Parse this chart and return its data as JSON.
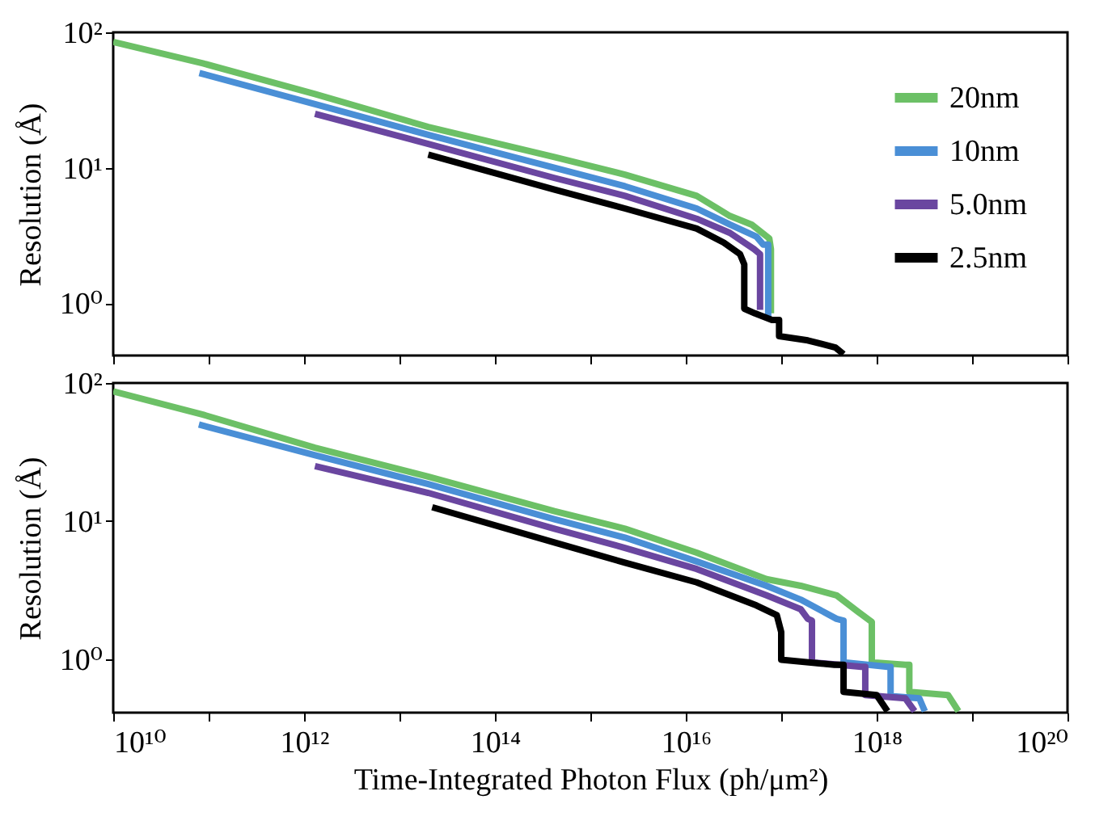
{
  "chart_data": [
    {
      "type": "line",
      "ylabel": "Resolution (Å)",
      "log": "xy",
      "legend": "top right",
      "tick_labels": "y",
      "xlim": [
        10000000000.0,
        1e+20
      ],
      "ylim": [
        0.41,
        100
      ],
      "xticks": [
        {
          "value": 10000000000.0,
          "label": null
        },
        {
          "value": 100000000000.0,
          "label": null
        },
        {
          "value": 1000000000000.0,
          "label": null
        },
        {
          "value": 10000000000000.0,
          "label": null
        },
        {
          "value": 100000000000000.0,
          "label": null
        },
        {
          "value": 1000000000000000.0,
          "label": null
        },
        {
          "value": 1e+16,
          "label": null
        },
        {
          "value": 1e+17,
          "label": null
        },
        {
          "value": 1e+18,
          "label": null
        },
        {
          "value": 1e+19,
          "label": null
        },
        {
          "value": 1e+20,
          "label": null
        }
      ],
      "yticks": [
        {
          "value": 1,
          "label": "10⁰"
        },
        {
          "value": 10,
          "label": "10¹"
        },
        {
          "value": 100,
          "label": "10²"
        }
      ],
      "series": [
        {
          "name": "20nm",
          "color": "#6cc066",
          "x": [
            10000000000.0,
            87000000000.0,
            1300000000000.0,
            20000000000000.0,
            420000000000000.0,
            2300000000000000.0,
            1.3e+16,
            2.9e+16,
            4.9e+16,
            7.5e+16,
            7.8e+16,
            7.8e+16
          ],
          "values": [
            85,
            59,
            35,
            20,
            12,
            8.9,
            6.2,
            4.4,
            3.8,
            3.0,
            2.5,
            0.84
          ]
        },
        {
          "name": "10nm",
          "color": "#4a8fd6",
          "x": [
            80000000000.0,
            1300000000000.0,
            20000000000000.0,
            420000000000000.0,
            2300000000000000.0,
            1.3e+16,
            2.9e+16,
            5.5e+16,
            6.5e+16,
            7.3e+16,
            7.3e+16
          ],
          "values": [
            50,
            29.5,
            17.5,
            10,
            7.3,
            5.0,
            3.8,
            3.1,
            2.7,
            2.7,
            0.79
          ]
        },
        {
          "name": "5.0nm",
          "color": "#6a46a0",
          "x": [
            1300000000000.0,
            20000000000000.0,
            420000000000000.0,
            2300000000000000.0,
            1.3e+16,
            2.9e+16,
            5.2e+16,
            6e+16,
            6e+16
          ],
          "values": [
            25,
            15,
            8.4,
            6.2,
            4.2,
            3.3,
            2.5,
            2.3,
            0.89
          ]
        },
        {
          "name": "2.5nm",
          "color": "#000000",
          "x": [
            20000000000000.0,
            420000000000000.0,
            2300000000000000.0,
            1.3e+16,
            2.5e+16,
            3.7e+16,
            4.1e+16,
            4.1e+16,
            5.3e+16,
            8e+16,
            9.5e+16,
            9.5e+16,
            1.9e+17,
            3.7e+17,
            4.5e+17
          ],
          "values": [
            12.5,
            6.9,
            5.0,
            3.55,
            2.8,
            2.3,
            1.93,
            0.91,
            0.84,
            0.75,
            0.75,
            0.57,
            0.53,
            0.47,
            0.42
          ]
        }
      ]
    },
    {
      "type": "line",
      "xlabel": "Time-Integrated Photon Flux (ph/μm²)",
      "ylabel": "Resolution (Å)",
      "log": "xy",
      "xlim": [
        10000000000.0,
        1e+20
      ],
      "ylim": [
        0.41,
        100
      ],
      "xticks": [
        {
          "value": 10000000000.0,
          "label": "10¹⁰"
        },
        {
          "value": 100000000000.0,
          "label": null
        },
        {
          "value": 1000000000000.0,
          "label": "10¹²"
        },
        {
          "value": 10000000000000.0,
          "label": null
        },
        {
          "value": 100000000000000.0,
          "label": "10¹⁴"
        },
        {
          "value": 1000000000000000.0,
          "label": null
        },
        {
          "value": 1e+16,
          "label": "10¹⁶"
        },
        {
          "value": 1e+17,
          "label": null
        },
        {
          "value": 1e+18,
          "label": "10¹⁸"
        },
        {
          "value": 1e+19,
          "label": null
        },
        {
          "value": 1e+20,
          "label": "10²⁰"
        }
      ],
      "yticks": [
        {
          "value": 1,
          "label": "10⁰"
        },
        {
          "value": 10,
          "label": "10¹"
        },
        {
          "value": 100,
          "label": "10²"
        }
      ],
      "series": [
        {
          "color": "#6cc066",
          "x": [
            10000000000.0,
            87000000000.0,
            1300000000000.0,
            20000000000000.0,
            420000000000000.0,
            2300000000000000.0,
            1.3e+16,
            7e+16,
            1.6e+17,
            3.8e+17,
            6.4e+17,
            8.9e+17,
            8.9e+17,
            2e+18,
            2.2e+18,
            2.2e+18,
            5.6e+18,
            7.2e+18
          ],
          "values": [
            87,
            59,
            34,
            21,
            11.8,
            8.8,
            5.9,
            3.8,
            3.4,
            2.9,
            2.2,
            1.86,
            0.95,
            0.91,
            0.91,
            0.58,
            0.55,
            0.42
          ]
        },
        {
          "color": "#4a8fd6",
          "x": [
            79000000000.0,
            1300000000000.0,
            20000000000000.0,
            420000000000000.0,
            2300000000000000.0,
            1.3e+16,
            7e+16,
            1.6e+17,
            3.8e+17,
            4.5e+17,
            4.5e+17,
            1.3e+18,
            1.4e+18,
            1.4e+18,
            2.8e+18,
            3.2e+18
          ],
          "values": [
            50,
            30,
            18.5,
            10.3,
            7.6,
            5.1,
            3.4,
            2.7,
            1.96,
            1.9,
            0.95,
            0.88,
            0.88,
            0.54,
            0.52,
            0.42
          ]
        },
        {
          "color": "#6a46a0",
          "x": [
            1300000000000.0,
            20000000000000.0,
            420000000000000.0,
            2300000000000000.0,
            1.3e+16,
            7e+16,
            1.6e+17,
            1.9e+17,
            2.1e+17,
            2.1e+17,
            6.9e+17,
            7.6e+17,
            7.6e+17,
            2e+18,
            2.5e+18
          ],
          "values": [
            25,
            16,
            8.8,
            6.4,
            4.5,
            2.9,
            2.3,
            1.96,
            1.9,
            0.95,
            0.88,
            0.88,
            0.55,
            0.52,
            0.42
          ]
        },
        {
          "color": "#000000",
          "x": [
            22000000000000.0,
            420000000000000.0,
            2300000000000000.0,
            1.3e+16,
            5.5e+16,
            9e+16,
            1e+17,
            1e+17,
            3.6e+17,
            4.5e+17,
            4.5e+17,
            1e+18,
            1.3e+18
          ],
          "values": [
            12.6,
            7.0,
            5.0,
            3.6,
            2.45,
            2.08,
            1.57,
            0.99,
            0.91,
            0.91,
            0.58,
            0.55,
            0.42
          ]
        }
      ]
    }
  ]
}
